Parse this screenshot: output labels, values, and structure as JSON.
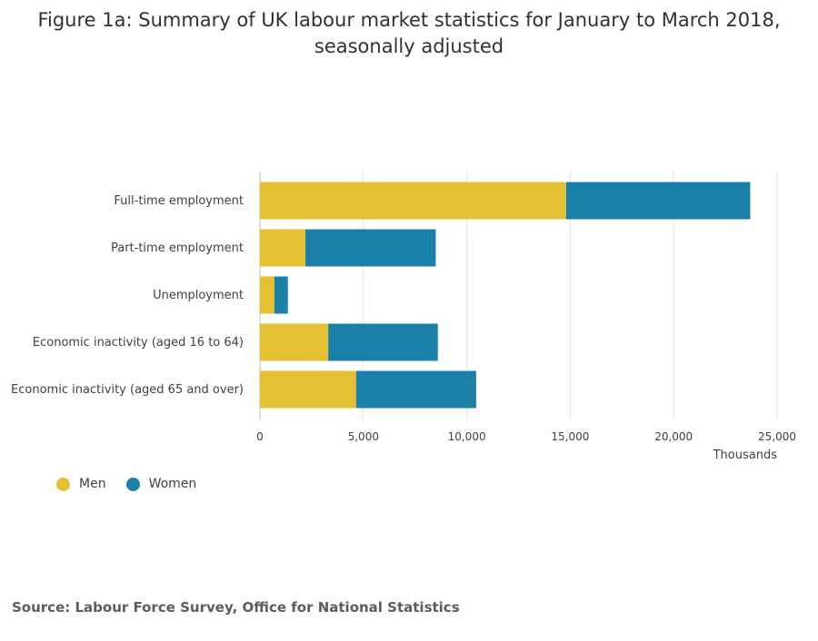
{
  "title": "Figure 1a: Summary of UK labour market statistics for January to March 2018, seasonally adjusted",
  "source": "Source: Labour Force Survey, Office for National Statistics",
  "colors": {
    "men": "#e5c033",
    "women": "#1b80a8",
    "grid": "#e2e2e2"
  },
  "chart_data": {
    "type": "bar",
    "orientation": "horizontal",
    "stacked": true,
    "categories": [
      "Full-time employment",
      "Part-time employment",
      "Unemployment",
      "Economic inactivity (aged 16 to 64)",
      "Economic inactivity (aged 65 and over)"
    ],
    "series": [
      {
        "name": "Men",
        "values": [
          14800,
          2200,
          700,
          3300,
          4650
        ]
      },
      {
        "name": "Women",
        "values": [
          8900,
          6300,
          650,
          5300,
          5800
        ]
      }
    ],
    "xlabel": "Thousands",
    "xlim": [
      0,
      25000
    ],
    "xticks": [
      0,
      5000,
      10000,
      15000,
      20000,
      25000
    ],
    "xtick_labels": [
      "0",
      "5,000",
      "10,000",
      "15,000",
      "20,000",
      "25,000"
    ],
    "grid": true,
    "legend_position": "bottom-left"
  }
}
